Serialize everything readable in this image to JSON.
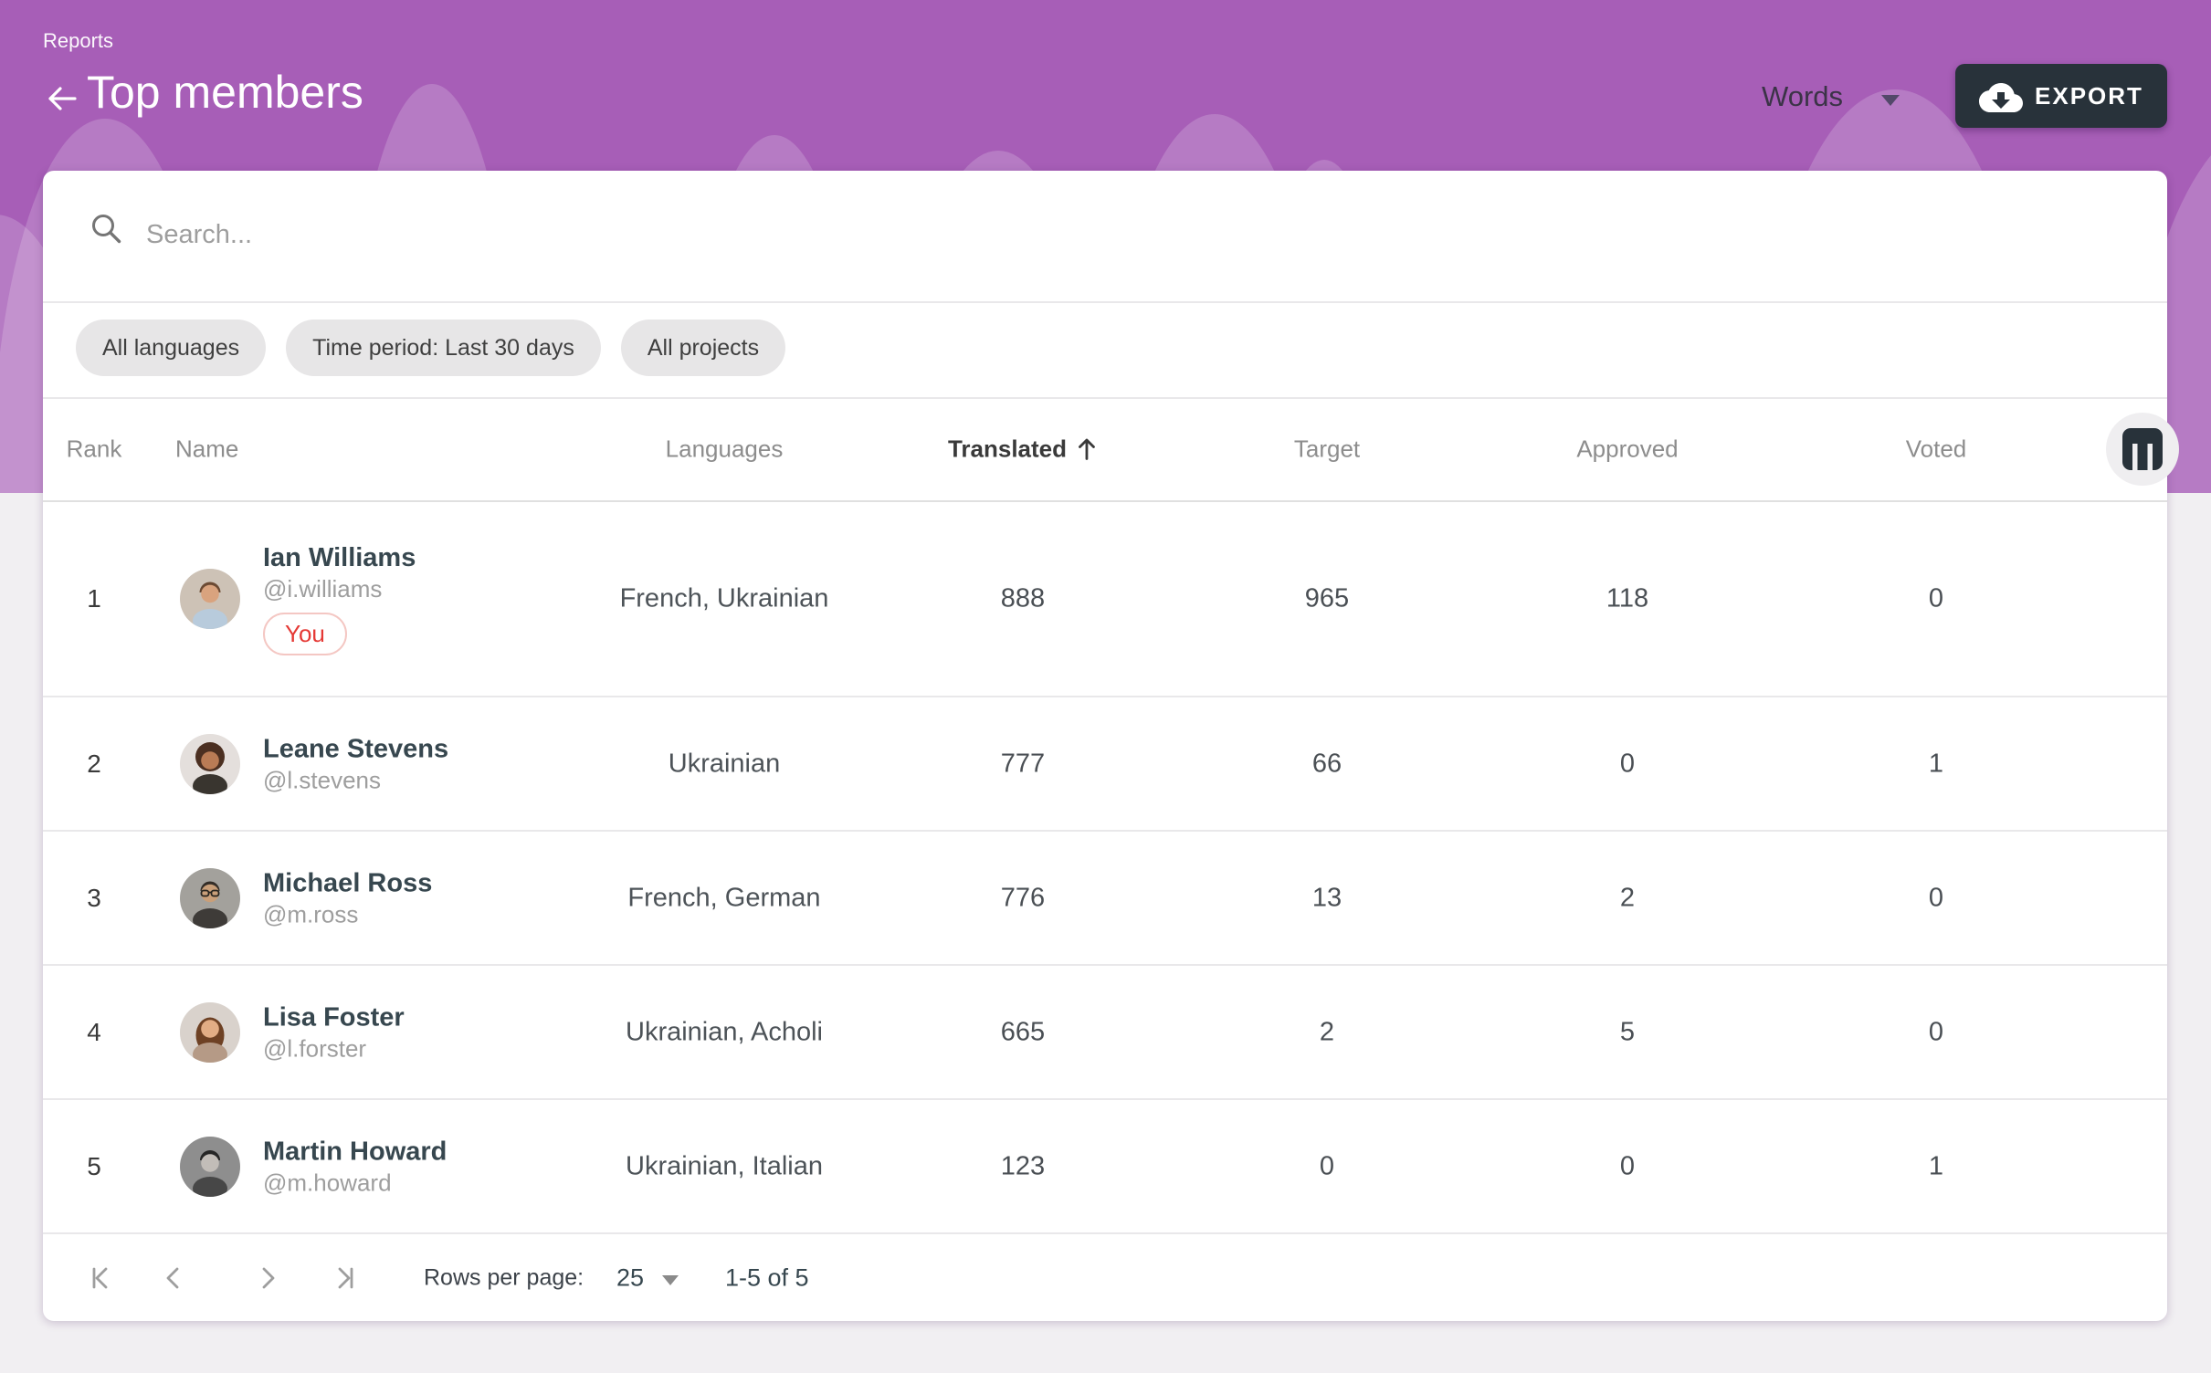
{
  "header": {
    "breadcrumb": "Reports",
    "title": "Top members",
    "unit_dropdown": "Words",
    "export_button": "EXPORT"
  },
  "colors": {
    "header_purple": "#a75eb7",
    "export_bg": "#28323a",
    "you_badge_red": "#e53935"
  },
  "filters": {
    "search_placeholder": "Search...",
    "chips": [
      "All languages",
      "Time period: Last 30 days",
      "All projects"
    ]
  },
  "table": {
    "columns": [
      "Rank",
      "Name",
      "Languages",
      "Translated",
      "Target",
      "Approved",
      "Voted"
    ],
    "sorted_by": "Translated",
    "sort_direction": "ascending",
    "rows": [
      {
        "rank": "1",
        "name": "Ian Williams",
        "username": "@i.williams",
        "badge": "You",
        "languages": "French, Ukrainian",
        "translated": "888",
        "target": "965",
        "approved": "118",
        "voted": "0",
        "avatar": {
          "desc": "man in light blue shirt",
          "bg": "#cdc2b6",
          "hair": "#6b4a33",
          "skin": "#d9a37e",
          "shirt": "#b8cbdc",
          "style": "short-hair"
        }
      },
      {
        "rank": "2",
        "name": "Leane Stevens",
        "username": "@l.stevens",
        "badge": "",
        "languages": "Ukrainian",
        "translated": "777",
        "target": "66",
        "approved": "0",
        "voted": "1",
        "avatar": {
          "desc": "woman with curly afro hair",
          "bg": "#e4dfdc",
          "hair": "#4b2f21",
          "skin": "#b97b55",
          "shirt": "#39352f",
          "style": "afro"
        }
      },
      {
        "rank": "3",
        "name": "Michael Ross",
        "username": "@m.ross",
        "badge": "",
        "languages": "French, German",
        "translated": "776",
        "target": "13",
        "approved": "2",
        "voted": "0",
        "avatar": {
          "desc": "man with glasses dark coat",
          "bg": "#a3a19c",
          "hair": "#332d27",
          "skin": "#c99f79",
          "shirt": "#3e3b38",
          "style": "glasses"
        }
      },
      {
        "rank": "4",
        "name": "Lisa Foster",
        "username": "@l.forster",
        "badge": "",
        "languages": "Ukrainian, Acholi",
        "translated": "665",
        "target": "2",
        "approved": "5",
        "voted": "0",
        "avatar": {
          "desc": "woman with long brown hair",
          "bg": "#d9d2cc",
          "hair": "#6e4124",
          "skin": "#e2ad85",
          "shirt": "#b59a86",
          "style": "long-hair"
        }
      },
      {
        "rank": "5",
        "name": "Martin Howard",
        "username": "@m.howard",
        "badge": "",
        "languages": "Ukrainian, Italian",
        "translated": "123",
        "target": "0",
        "approved": "0",
        "voted": "1",
        "avatar": {
          "desc": "man in beanie black and white photo",
          "bg": "#8e8e8e",
          "hair": "#262626",
          "skin": "#c2bdb8",
          "shirt": "#474747",
          "style": "beanie"
        }
      }
    ]
  },
  "pagination": {
    "rows_per_page_label": "Rows per page:",
    "rows_per_page": "25",
    "range": "1-5 of 5"
  }
}
